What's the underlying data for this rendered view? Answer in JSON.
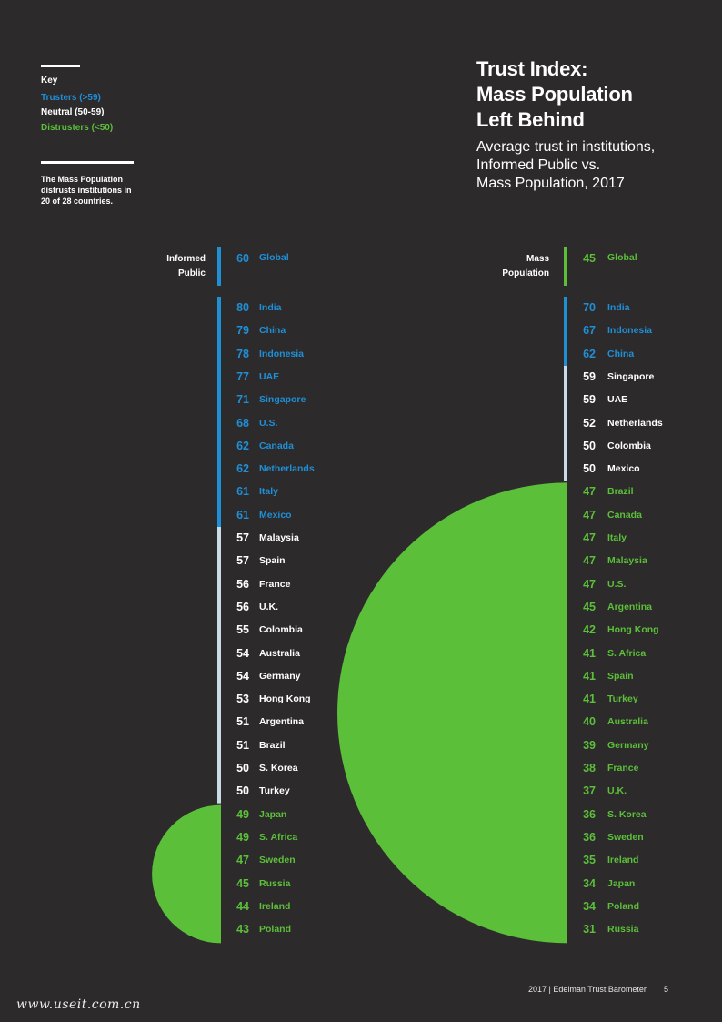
{
  "key": {
    "title": "Key",
    "trusters": "Trusters (>59)",
    "neutral": "Neutral (50-59)",
    "distrusters": "Distrusters (<50)"
  },
  "note": "The Mass Population distrusts institutions in 20 of 28 countries.",
  "title": [
    "Trust Index:",
    "Mass Population",
    "Left Behind"
  ],
  "subtitle": [
    "Average trust in institutions,",
    "Informed Public vs.",
    "Mass Population, 2017"
  ],
  "footer": "2017 | Edelman Trust Barometer",
  "page_number": "5",
  "watermark": "www.useit.com.cn",
  "colors": {
    "trusters": "#1f8fd6",
    "neutral": "#c9dbe6",
    "distrusters": "#5bbf3a",
    "background": "#2d2a2b",
    "text": "#ffffff"
  },
  "chart_data": [
    {
      "type": "table",
      "series_name": [
        "Informed",
        "Public"
      ],
      "global": {
        "value": 60,
        "name": "Global"
      },
      "rows": [
        {
          "value": 80,
          "name": "India"
        },
        {
          "value": 79,
          "name": "China"
        },
        {
          "value": 78,
          "name": "Indonesia"
        },
        {
          "value": 77,
          "name": "UAE"
        },
        {
          "value": 71,
          "name": "Singapore"
        },
        {
          "value": 68,
          "name": "U.S."
        },
        {
          "value": 62,
          "name": "Canada"
        },
        {
          "value": 62,
          "name": "Netherlands"
        },
        {
          "value": 61,
          "name": "Italy"
        },
        {
          "value": 61,
          "name": "Mexico"
        },
        {
          "value": 57,
          "name": "Malaysia"
        },
        {
          "value": 57,
          "name": "Spain"
        },
        {
          "value": 56,
          "name": "France"
        },
        {
          "value": 56,
          "name": "U.K."
        },
        {
          "value": 55,
          "name": "Colombia"
        },
        {
          "value": 54,
          "name": "Australia"
        },
        {
          "value": 54,
          "name": "Germany"
        },
        {
          "value": 53,
          "name": "Hong Kong"
        },
        {
          "value": 51,
          "name": "Argentina"
        },
        {
          "value": 51,
          "name": "Brazil"
        },
        {
          "value": 50,
          "name": "S. Korea"
        },
        {
          "value": 50,
          "name": "Turkey"
        },
        {
          "value": 49,
          "name": "Japan"
        },
        {
          "value": 49,
          "name": "S. Africa"
        },
        {
          "value": 47,
          "name": "Sweden"
        },
        {
          "value": 45,
          "name": "Russia"
        },
        {
          "value": 44,
          "name": "Ireland"
        },
        {
          "value": 43,
          "name": "Poland"
        }
      ]
    },
    {
      "type": "table",
      "series_name": [
        "Mass",
        "Population"
      ],
      "global": {
        "value": 45,
        "name": "Global"
      },
      "rows": [
        {
          "value": 70,
          "name": "India"
        },
        {
          "value": 67,
          "name": "Indonesia"
        },
        {
          "value": 62,
          "name": "China"
        },
        {
          "value": 59,
          "name": "Singapore"
        },
        {
          "value": 59,
          "name": "UAE"
        },
        {
          "value": 52,
          "name": "Netherlands"
        },
        {
          "value": 50,
          "name": "Colombia"
        },
        {
          "value": 50,
          "name": "Mexico"
        },
        {
          "value": 47,
          "name": "Brazil"
        },
        {
          "value": 47,
          "name": "Canada"
        },
        {
          "value": 47,
          "name": "Italy"
        },
        {
          "value": 47,
          "name": "Malaysia"
        },
        {
          "value": 47,
          "name": "U.S."
        },
        {
          "value": 45,
          "name": "Argentina"
        },
        {
          "value": 42,
          "name": "Hong Kong"
        },
        {
          "value": 41,
          "name": "S. Africa"
        },
        {
          "value": 41,
          "name": "Spain"
        },
        {
          "value": 41,
          "name": "Turkey"
        },
        {
          "value": 40,
          "name": "Australia"
        },
        {
          "value": 39,
          "name": "Germany"
        },
        {
          "value": 38,
          "name": "France"
        },
        {
          "value": 37,
          "name": "U.K."
        },
        {
          "value": 36,
          "name": "S. Korea"
        },
        {
          "value": 36,
          "name": "Sweden"
        },
        {
          "value": 35,
          "name": "Ireland"
        },
        {
          "value": 34,
          "name": "Japan"
        },
        {
          "value": 34,
          "name": "Poland"
        },
        {
          "value": 31,
          "name": "Russia"
        }
      ]
    }
  ]
}
